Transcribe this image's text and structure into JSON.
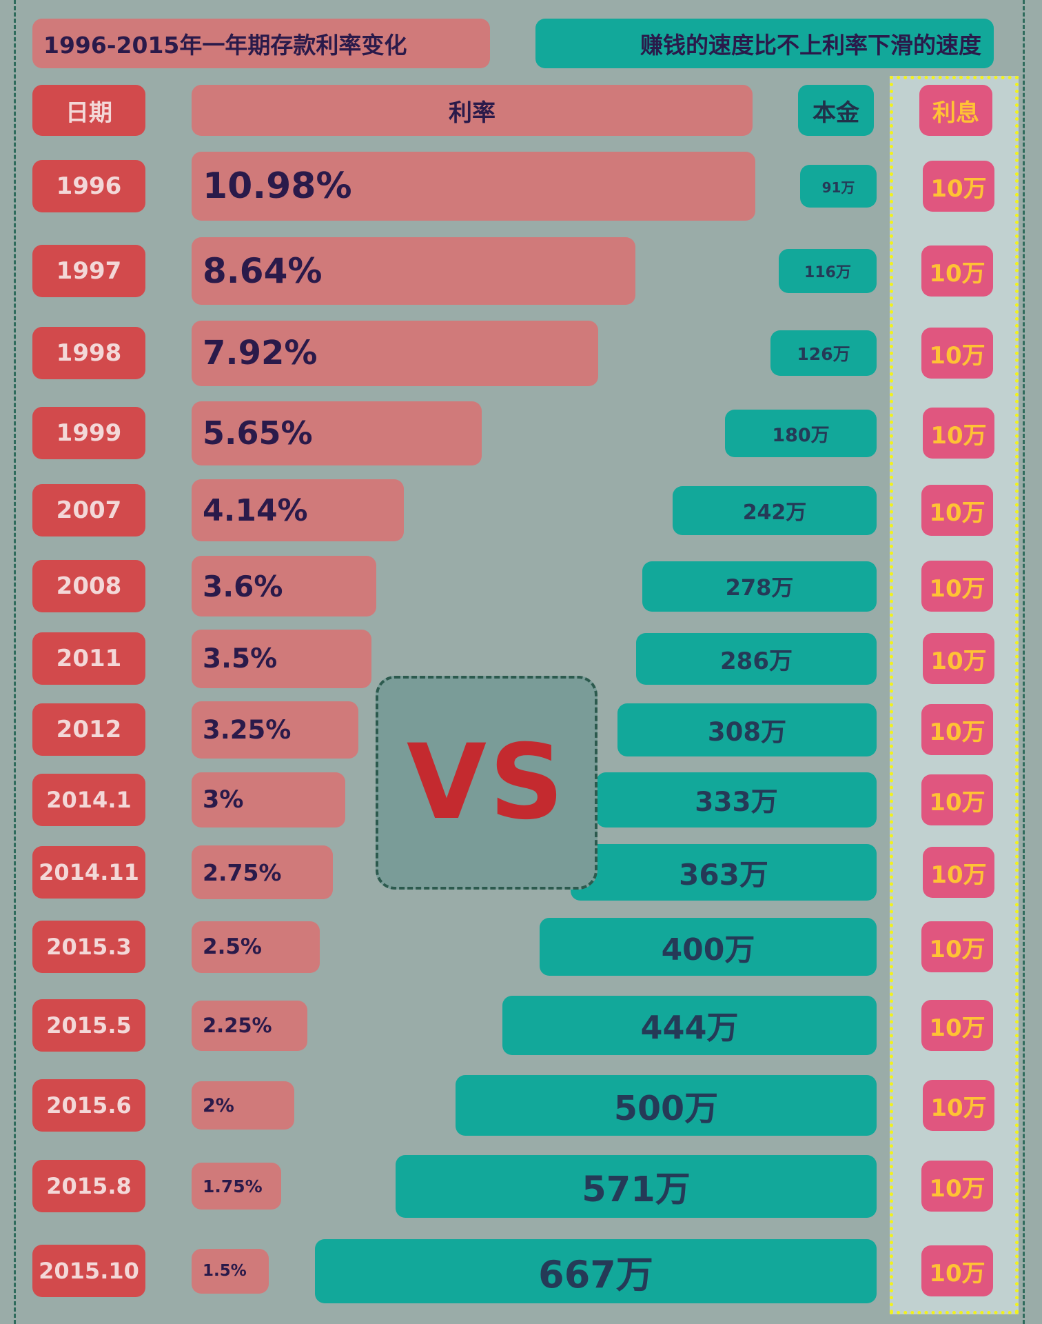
{
  "header": {
    "title": "1996-2015年一年期存款利率变化",
    "slogan": "赚钱的速度比不上利率下滑的速度",
    "col_date": "日期",
    "col_rate": "利率",
    "col_principal": "本金",
    "col_interest": "利息"
  },
  "vs_label": "VS",
  "chart_data": {
    "type": "bar",
    "categories": [
      "1996",
      "1997",
      "1998",
      "1999",
      "2007",
      "2008",
      "2011",
      "2012",
      "2014.1",
      "2014.11",
      "2015.3",
      "2015.5",
      "2015.6",
      "2015.8",
      "2015.10"
    ],
    "series": [
      {
        "name": "利率",
        "values": [
          10.98,
          8.64,
          7.92,
          5.65,
          4.14,
          3.6,
          3.5,
          3.25,
          3,
          2.75,
          2.5,
          2.25,
          2,
          1.75,
          1.5
        ],
        "unit": "%",
        "color": "#d07a7a"
      },
      {
        "name": "本金",
        "values": [
          91,
          116,
          126,
          180,
          242,
          278,
          286,
          308,
          333,
          363,
          400,
          444,
          500,
          571,
          667
        ],
        "unit": "万",
        "color": "#12a89a"
      },
      {
        "name": "利息",
        "values": [
          10,
          10,
          10,
          10,
          10,
          10,
          10,
          10,
          10,
          10,
          10,
          10,
          10,
          10,
          10
        ],
        "unit": "万",
        "color": "#e0567f"
      }
    ],
    "rate_labels": [
      "10.98%",
      "8.64%",
      "7.92%",
      "5.65%",
      "4.14%",
      "3.6%",
      "3.5%",
      "3.25%",
      "3%",
      "2.75%",
      "2.5%",
      "2.25%",
      "2%",
      "1.75%",
      "1.5%"
    ],
    "principal_labels": [
      "91万",
      "116万",
      "126万",
      "180万",
      "242万",
      "278万",
      "286万",
      "308万",
      "333万",
      "363万",
      "400万",
      "444万",
      "500万",
      "571万",
      "667万"
    ],
    "interest_labels": [
      "10万",
      "10万",
      "10万",
      "10万",
      "10万",
      "10万",
      "10万",
      "10万",
      "10万",
      "10万",
      "10万",
      "10万",
      "10万",
      "10万",
      "10万"
    ]
  }
}
